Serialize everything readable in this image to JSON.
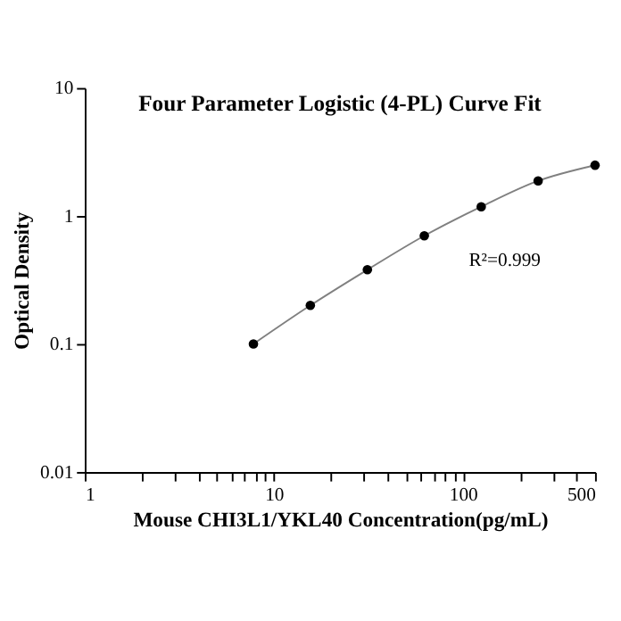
{
  "chart_data": {
    "type": "scatter",
    "title": "Four Parameter Logistic (4-PL) Curve Fit",
    "xlabel": "Mouse CHI3L1/YKL40 Concentration(pg/mL)",
    "ylabel": "Optical Density",
    "x": [
      7.8,
      15.6,
      31.25,
      62.5,
      125,
      250,
      500
    ],
    "series": [
      {
        "type": "line",
        "color": "#808080",
        "values": [
          0.1,
          0.2,
          0.38,
          0.7,
          1.18,
          1.88,
          2.49
        ],
        "marker": "none"
      },
      {
        "color": "#000000",
        "values": [
          0.1,
          0.2,
          0.38,
          0.7,
          1.18,
          1.88,
          2.49
        ],
        "marker": "circle"
      }
    ],
    "log": "xy",
    "xlim": [
      1,
      500
    ],
    "ylim": [
      0.01,
      10
    ],
    "xticks": [
      1,
      {
        "value": 2,
        "label": null
      },
      {
        "value": 3,
        "label": null
      },
      {
        "value": 4,
        "label": null
      },
      {
        "value": 5,
        "label": null
      },
      {
        "value": 6,
        "label": null
      },
      {
        "value": 7,
        "label": null
      },
      {
        "value": 8,
        "label": null
      },
      {
        "value": 9,
        "label": null
      },
      10,
      {
        "value": 20,
        "label": null
      },
      {
        "value": 30,
        "label": null
      },
      {
        "value": 40,
        "label": null
      },
      {
        "value": 50,
        "label": null
      },
      {
        "value": 60,
        "label": null
      },
      {
        "value": 70,
        "label": null
      },
      {
        "value": 80,
        "label": null
      },
      {
        "value": 90,
        "label": null
      },
      100,
      {
        "value": 200,
        "label": null
      },
      {
        "value": 300,
        "label": null
      },
      {
        "value": 400,
        "label": null
      },
      500
    ],
    "yticks": [
      0.01,
      0.1,
      1,
      10
    ],
    "annotations": [
      "R²=0.999"
    ],
    "grid": false
  }
}
